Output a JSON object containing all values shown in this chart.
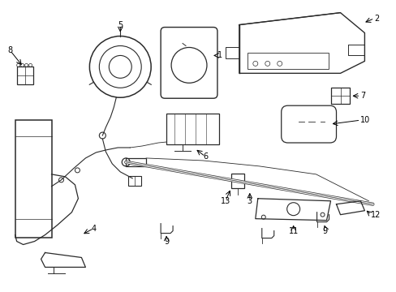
{
  "bg_color": "#ffffff",
  "line_color": "#2a2a2a",
  "fig_width": 4.89,
  "fig_height": 3.6,
  "dpi": 100,
  "label_fontsize": 7.0,
  "lw_main": 0.9,
  "lw_thin": 0.6
}
